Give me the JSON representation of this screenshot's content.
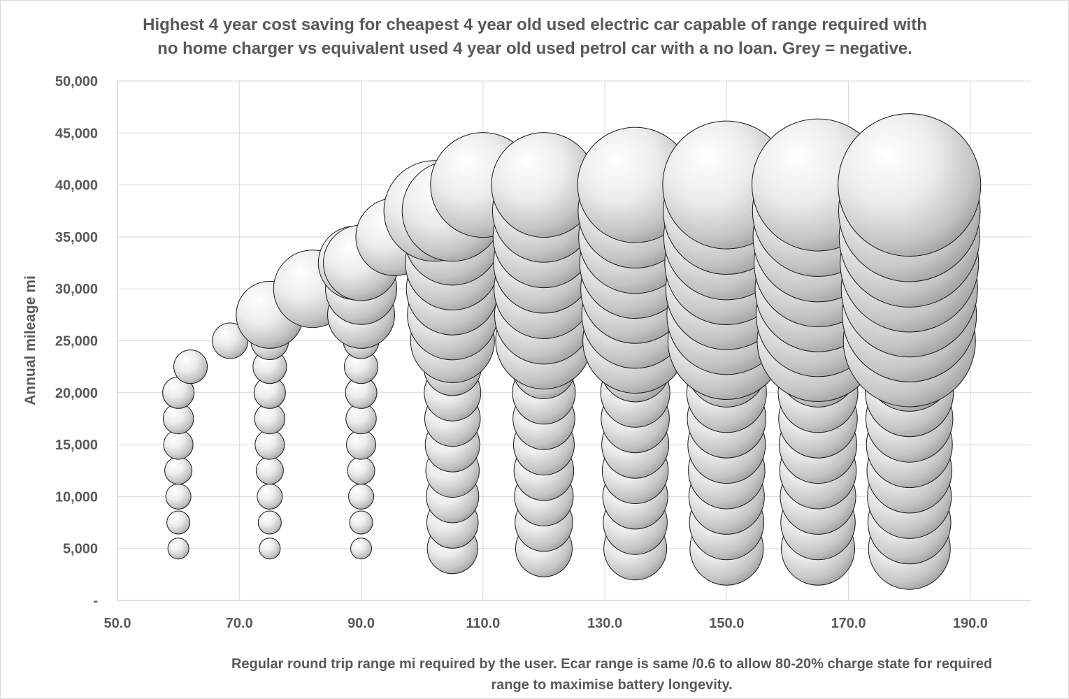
{
  "chart_data": {
    "type": "bubble",
    "title_lines": [
      "Highest 4 year cost saving for cheapest 4 year old used electric car capable of range required  with",
      "no home charger vs equivalent used 4 year old used petrol car with a no loan. Grey = negative."
    ],
    "xlabel_lines": [
      "Regular round trip range mi required by the user.  Ecar range is same /0.6 to allow 80-20% charge state for required",
      "range to maximise battery longevity."
    ],
    "ylabel": "Annual mileage mi",
    "xlim": [
      50,
      200
    ],
    "ylim": [
      0,
      50000
    ],
    "x_ticks": [
      "50.0",
      "70.0",
      "90.0",
      "110.0",
      "130.0",
      "150.0",
      "170.0",
      "190.0"
    ],
    "x_tick_values": [
      50,
      70,
      90,
      110,
      130,
      150,
      170,
      190
    ],
    "y_ticks": [
      "-",
      "5,000",
      "10,000",
      "15,000",
      "20,000",
      "25,000",
      "30,000",
      "35,000",
      "40,000",
      "45,000",
      "50,000"
    ],
    "y_tick_values": [
      0,
      5000,
      10000,
      15000,
      20000,
      25000,
      30000,
      35000,
      40000,
      45000,
      50000
    ],
    "grid": true,
    "legend": "none",
    "bubble_color": "#d9d9d9",
    "series": [
      {
        "points": [
          {
            "x": 60,
            "y": 5000,
            "size": 1.0
          },
          {
            "x": 60,
            "y": 7500,
            "size": 1.1
          },
          {
            "x": 60,
            "y": 10000,
            "size": 1.2
          },
          {
            "x": 60,
            "y": 12500,
            "size": 1.3
          },
          {
            "x": 60,
            "y": 15000,
            "size": 1.4
          },
          {
            "x": 60,
            "y": 17500,
            "size": 1.45
          },
          {
            "x": 60,
            "y": 20000,
            "size": 1.5
          },
          {
            "x": 62,
            "y": 22500,
            "size": 1.6
          },
          {
            "x": 68.5,
            "y": 25000,
            "size": 1.7
          },
          {
            "x": 75,
            "y": 5000,
            "size": 1.0
          },
          {
            "x": 75,
            "y": 7500,
            "size": 1.1
          },
          {
            "x": 75,
            "y": 10000,
            "size": 1.2
          },
          {
            "x": 75,
            "y": 12500,
            "size": 1.3
          },
          {
            "x": 75,
            "y": 15000,
            "size": 1.4
          },
          {
            "x": 75,
            "y": 17500,
            "size": 1.45
          },
          {
            "x": 75,
            "y": 20000,
            "size": 1.5
          },
          {
            "x": 75,
            "y": 22500,
            "size": 1.6
          },
          {
            "x": 75,
            "y": 25000,
            "size": 1.8
          },
          {
            "x": 75,
            "y": 27500,
            "size": 3.2
          },
          {
            "x": 82,
            "y": 30000,
            "size": 3.7
          },
          {
            "x": 90,
            "y": 5000,
            "size": 1.0
          },
          {
            "x": 90,
            "y": 7500,
            "size": 1.1
          },
          {
            "x": 90,
            "y": 10000,
            "size": 1.2
          },
          {
            "x": 90,
            "y": 12500,
            "size": 1.3
          },
          {
            "x": 90,
            "y": 15000,
            "size": 1.4
          },
          {
            "x": 90,
            "y": 17500,
            "size": 1.45
          },
          {
            "x": 90,
            "y": 20000,
            "size": 1.5
          },
          {
            "x": 90,
            "y": 22500,
            "size": 1.6
          },
          {
            "x": 90,
            "y": 25000,
            "size": 1.7
          },
          {
            "x": 90,
            "y": 27500,
            "size": 3.2
          },
          {
            "x": 90,
            "y": 30000,
            "size": 3.4
          },
          {
            "x": 89,
            "y": 32500,
            "size": 3.5
          },
          {
            "x": 90,
            "y": 32500,
            "size": 3.6
          },
          {
            "x": 95.5,
            "y": 35000,
            "size": 3.7
          },
          {
            "x": 105,
            "y": 5000,
            "size": 2.4
          },
          {
            "x": 105,
            "y": 7500,
            "size": 2.45
          },
          {
            "x": 105,
            "y": 10000,
            "size": 2.5
          },
          {
            "x": 105,
            "y": 12500,
            "size": 2.55
          },
          {
            "x": 105,
            "y": 15000,
            "size": 2.6
          },
          {
            "x": 105,
            "y": 17500,
            "size": 2.65
          },
          {
            "x": 105,
            "y": 20000,
            "size": 2.7
          },
          {
            "x": 105,
            "y": 22500,
            "size": 2.75
          },
          {
            "x": 105,
            "y": 25000,
            "size": 4.0
          },
          {
            "x": 105,
            "y": 27500,
            "size": 4.3
          },
          {
            "x": 105,
            "y": 30000,
            "size": 4.4
          },
          {
            "x": 105,
            "y": 32500,
            "size": 4.5
          },
          {
            "x": 105,
            "y": 35000,
            "size": 4.6
          },
          {
            "x": 102,
            "y": 37500,
            "size": 4.8
          },
          {
            "x": 105,
            "y": 37500,
            "size": 4.8
          },
          {
            "x": 110,
            "y": 40000,
            "size": 5.0
          },
          {
            "x": 120,
            "y": 5000,
            "size": 2.7
          },
          {
            "x": 120,
            "y": 7500,
            "size": 2.75
          },
          {
            "x": 120,
            "y": 10000,
            "size": 2.8
          },
          {
            "x": 120,
            "y": 12500,
            "size": 2.85
          },
          {
            "x": 120,
            "y": 15000,
            "size": 2.9
          },
          {
            "x": 120,
            "y": 17500,
            "size": 2.95
          },
          {
            "x": 120,
            "y": 20000,
            "size": 3.0
          },
          {
            "x": 120,
            "y": 22500,
            "size": 3.05
          },
          {
            "x": 120,
            "y": 25000,
            "size": 4.6
          },
          {
            "x": 120,
            "y": 27500,
            "size": 4.7
          },
          {
            "x": 120,
            "y": 30000,
            "size": 4.75
          },
          {
            "x": 120,
            "y": 32500,
            "size": 4.8
          },
          {
            "x": 120,
            "y": 35000,
            "size": 4.85
          },
          {
            "x": 120,
            "y": 37500,
            "size": 4.9
          },
          {
            "x": 120,
            "y": 40000,
            "size": 5.0
          },
          {
            "x": 135,
            "y": 5000,
            "size": 3.0
          },
          {
            "x": 135,
            "y": 7500,
            "size": 3.05
          },
          {
            "x": 135,
            "y": 10000,
            "size": 3.1
          },
          {
            "x": 135,
            "y": 12500,
            "size": 3.15
          },
          {
            "x": 135,
            "y": 15000,
            "size": 3.2
          },
          {
            "x": 135,
            "y": 17500,
            "size": 3.25
          },
          {
            "x": 135,
            "y": 20000,
            "size": 3.3
          },
          {
            "x": 135,
            "y": 22500,
            "size": 3.35
          },
          {
            "x": 135,
            "y": 25000,
            "size": 5.0
          },
          {
            "x": 135,
            "y": 27500,
            "size": 5.1
          },
          {
            "x": 135,
            "y": 30000,
            "size": 5.2
          },
          {
            "x": 135,
            "y": 32500,
            "size": 5.3
          },
          {
            "x": 135,
            "y": 35000,
            "size": 5.4
          },
          {
            "x": 135,
            "y": 37500,
            "size": 5.45
          },
          {
            "x": 135,
            "y": 40000,
            "size": 5.5
          },
          {
            "x": 150,
            "y": 5000,
            "size": 3.5
          },
          {
            "x": 150,
            "y": 7500,
            "size": 3.55
          },
          {
            "x": 150,
            "y": 10000,
            "size": 3.6
          },
          {
            "x": 150,
            "y": 12500,
            "size": 3.65
          },
          {
            "x": 150,
            "y": 15000,
            "size": 3.7
          },
          {
            "x": 150,
            "y": 17500,
            "size": 3.75
          },
          {
            "x": 150,
            "y": 20000,
            "size": 3.8
          },
          {
            "x": 150,
            "y": 22500,
            "size": 3.85
          },
          {
            "x": 150,
            "y": 25000,
            "size": 5.6
          },
          {
            "x": 150,
            "y": 27500,
            "size": 5.7
          },
          {
            "x": 150,
            "y": 30000,
            "size": 5.8
          },
          {
            "x": 150,
            "y": 32500,
            "size": 5.9
          },
          {
            "x": 150,
            "y": 35000,
            "size": 6.0
          },
          {
            "x": 150,
            "y": 37500,
            "size": 6.05
          },
          {
            "x": 150,
            "y": 40000,
            "size": 6.1
          },
          {
            "x": 165,
            "y": 5000,
            "size": 3.5
          },
          {
            "x": 165,
            "y": 7500,
            "size": 3.55
          },
          {
            "x": 165,
            "y": 10000,
            "size": 3.6
          },
          {
            "x": 165,
            "y": 12500,
            "size": 3.65
          },
          {
            "x": 165,
            "y": 15000,
            "size": 3.7
          },
          {
            "x": 165,
            "y": 17500,
            "size": 3.75
          },
          {
            "x": 165,
            "y": 20000,
            "size": 3.8
          },
          {
            "x": 165,
            "y": 22500,
            "size": 3.85
          },
          {
            "x": 165,
            "y": 25000,
            "size": 5.8
          },
          {
            "x": 165,
            "y": 27500,
            "size": 5.9
          },
          {
            "x": 165,
            "y": 30000,
            "size": 6.0
          },
          {
            "x": 165,
            "y": 32500,
            "size": 6.1
          },
          {
            "x": 165,
            "y": 35000,
            "size": 6.2
          },
          {
            "x": 165,
            "y": 37500,
            "size": 6.25
          },
          {
            "x": 165,
            "y": 40000,
            "size": 6.3
          },
          {
            "x": 180,
            "y": 5000,
            "size": 3.9
          },
          {
            "x": 180,
            "y": 7500,
            "size": 3.95
          },
          {
            "x": 180,
            "y": 10000,
            "size": 4.0
          },
          {
            "x": 180,
            "y": 12500,
            "size": 4.05
          },
          {
            "x": 180,
            "y": 15000,
            "size": 4.1
          },
          {
            "x": 180,
            "y": 17500,
            "size": 4.15
          },
          {
            "x": 180,
            "y": 20000,
            "size": 4.2
          },
          {
            "x": 180,
            "y": 22500,
            "size": 4.25
          },
          {
            "x": 180,
            "y": 25000,
            "size": 6.3
          },
          {
            "x": 180,
            "y": 27500,
            "size": 6.4
          },
          {
            "x": 180,
            "y": 30000,
            "size": 6.5
          },
          {
            "x": 180,
            "y": 32500,
            "size": 6.6
          },
          {
            "x": 180,
            "y": 35000,
            "size": 6.7
          },
          {
            "x": 180,
            "y": 37500,
            "size": 6.75
          },
          {
            "x": 180,
            "y": 40000,
            "size": 6.8
          }
        ]
      }
    ]
  }
}
